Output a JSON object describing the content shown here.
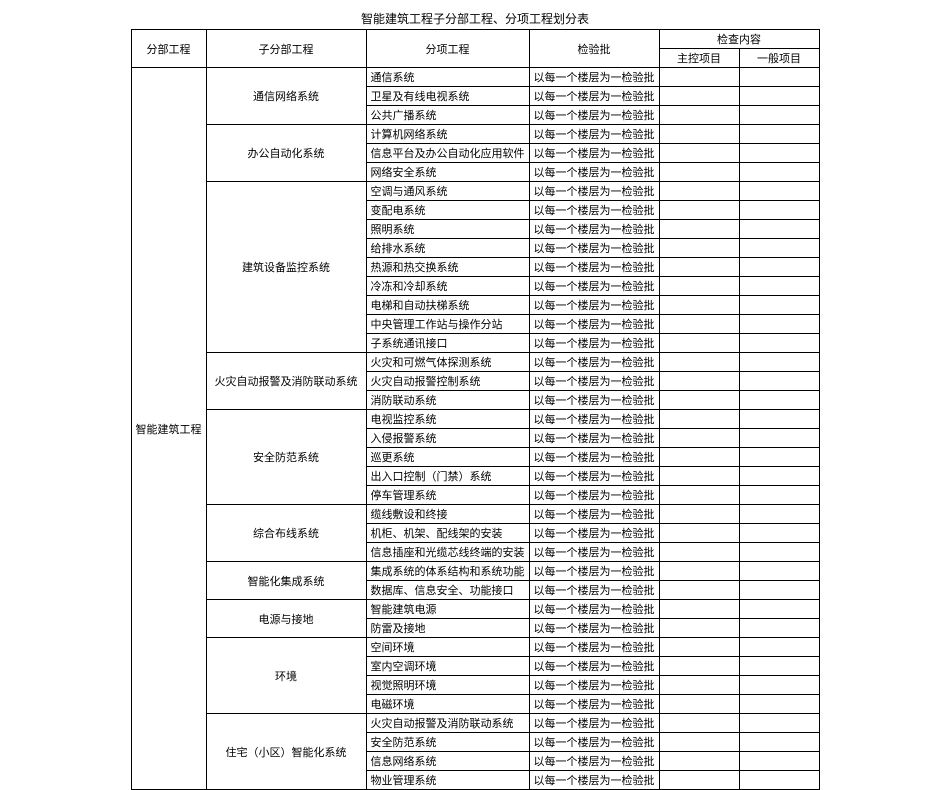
{
  "title": "智能建筑工程子分部工程、分项工程划分表",
  "headers": {
    "h1": "分部工程",
    "h2": "子分部工程",
    "h3": "分项工程",
    "h4": "检验批",
    "h5": "检查内容",
    "h5a": "主控项目",
    "h5b": "一般项目"
  },
  "main": "智能建筑工程",
  "batch": "以每一个楼层为一检验批",
  "groups": [
    {
      "name": "通信网络系统",
      "items": [
        "通信系统",
        "卫星及有线电视系统",
        "公共广播系统"
      ]
    },
    {
      "name": "办公自动化系统",
      "items": [
        "计算机网络系统",
        "信息平台及办公自动化应用软件",
        "网络安全系统"
      ]
    },
    {
      "name": "建筑设备监控系统",
      "items": [
        "空调与通风系统",
        "变配电系统",
        "照明系统",
        "给排水系统",
        "热源和热交换系统",
        "冷冻和冷却系统",
        "电梯和自动扶梯系统",
        "中央管理工作站与操作分站",
        "子系统通讯接口"
      ]
    },
    {
      "name": "火灾自动报警及消防联动系统",
      "items": [
        "火灾和可燃气体探测系统",
        "火灾自动报警控制系统",
        "消防联动系统"
      ]
    },
    {
      "name": "安全防范系统",
      "items": [
        "电视监控系统",
        "入侵报警系统",
        "巡更系统",
        "出入口控制（门禁）系统",
        "停车管理系统"
      ]
    },
    {
      "name": "综合布线系统",
      "items": [
        "缆线敷设和终接",
        "机柜、机架、配线架的安装",
        "信息插座和光缆芯线终端的安装"
      ]
    },
    {
      "name": "智能化集成系统",
      "items": [
        "集成系统的体系结构和系统功能",
        "数据库、信息安全、功能接口"
      ]
    },
    {
      "name": "电源与接地",
      "items": [
        "智能建筑电源",
        "防雷及接地"
      ]
    },
    {
      "name": "环境",
      "items": [
        "空间环境",
        "室内空调环境",
        "视觉照明环境",
        "电磁环境"
      ]
    },
    {
      "name": "住宅（小区）智能化系统",
      "items": [
        "火灾自动报警及消防联动系统",
        "安全防范系统",
        "信息网络系统",
        "物业管理系统"
      ]
    }
  ]
}
